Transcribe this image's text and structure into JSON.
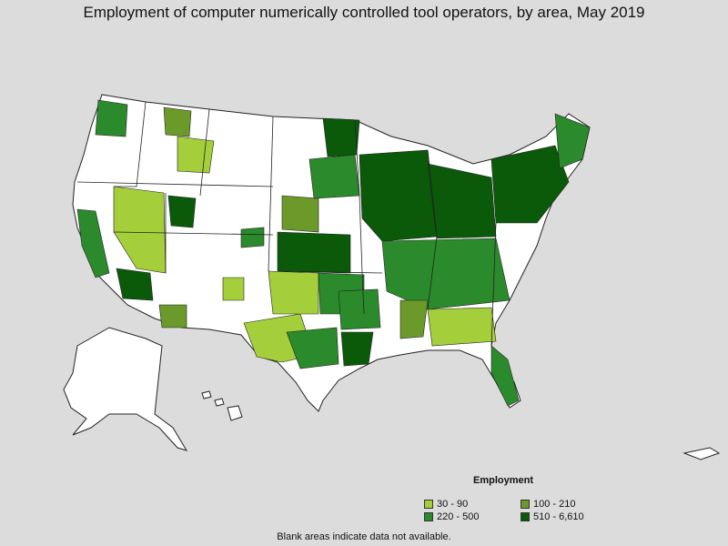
{
  "title": "Employment of computer numerically controlled tool operators, by area, May 2019",
  "legend": {
    "title": "Employment",
    "items": [
      {
        "label": "30 - 90",
        "color": "#a4cf3a"
      },
      {
        "label": "100 - 210",
        "color": "#6b9a2a"
      },
      {
        "label": "220 - 500",
        "color": "#2b8a2b"
      },
      {
        "label": "510 - 6,610",
        "color": "#0a5a0a"
      }
    ]
  },
  "footnote": "Blank areas indicate data not available.",
  "colors": {
    "background": "#dcdcdc",
    "no_data": "#ffffff",
    "border": "#222222"
  }
}
